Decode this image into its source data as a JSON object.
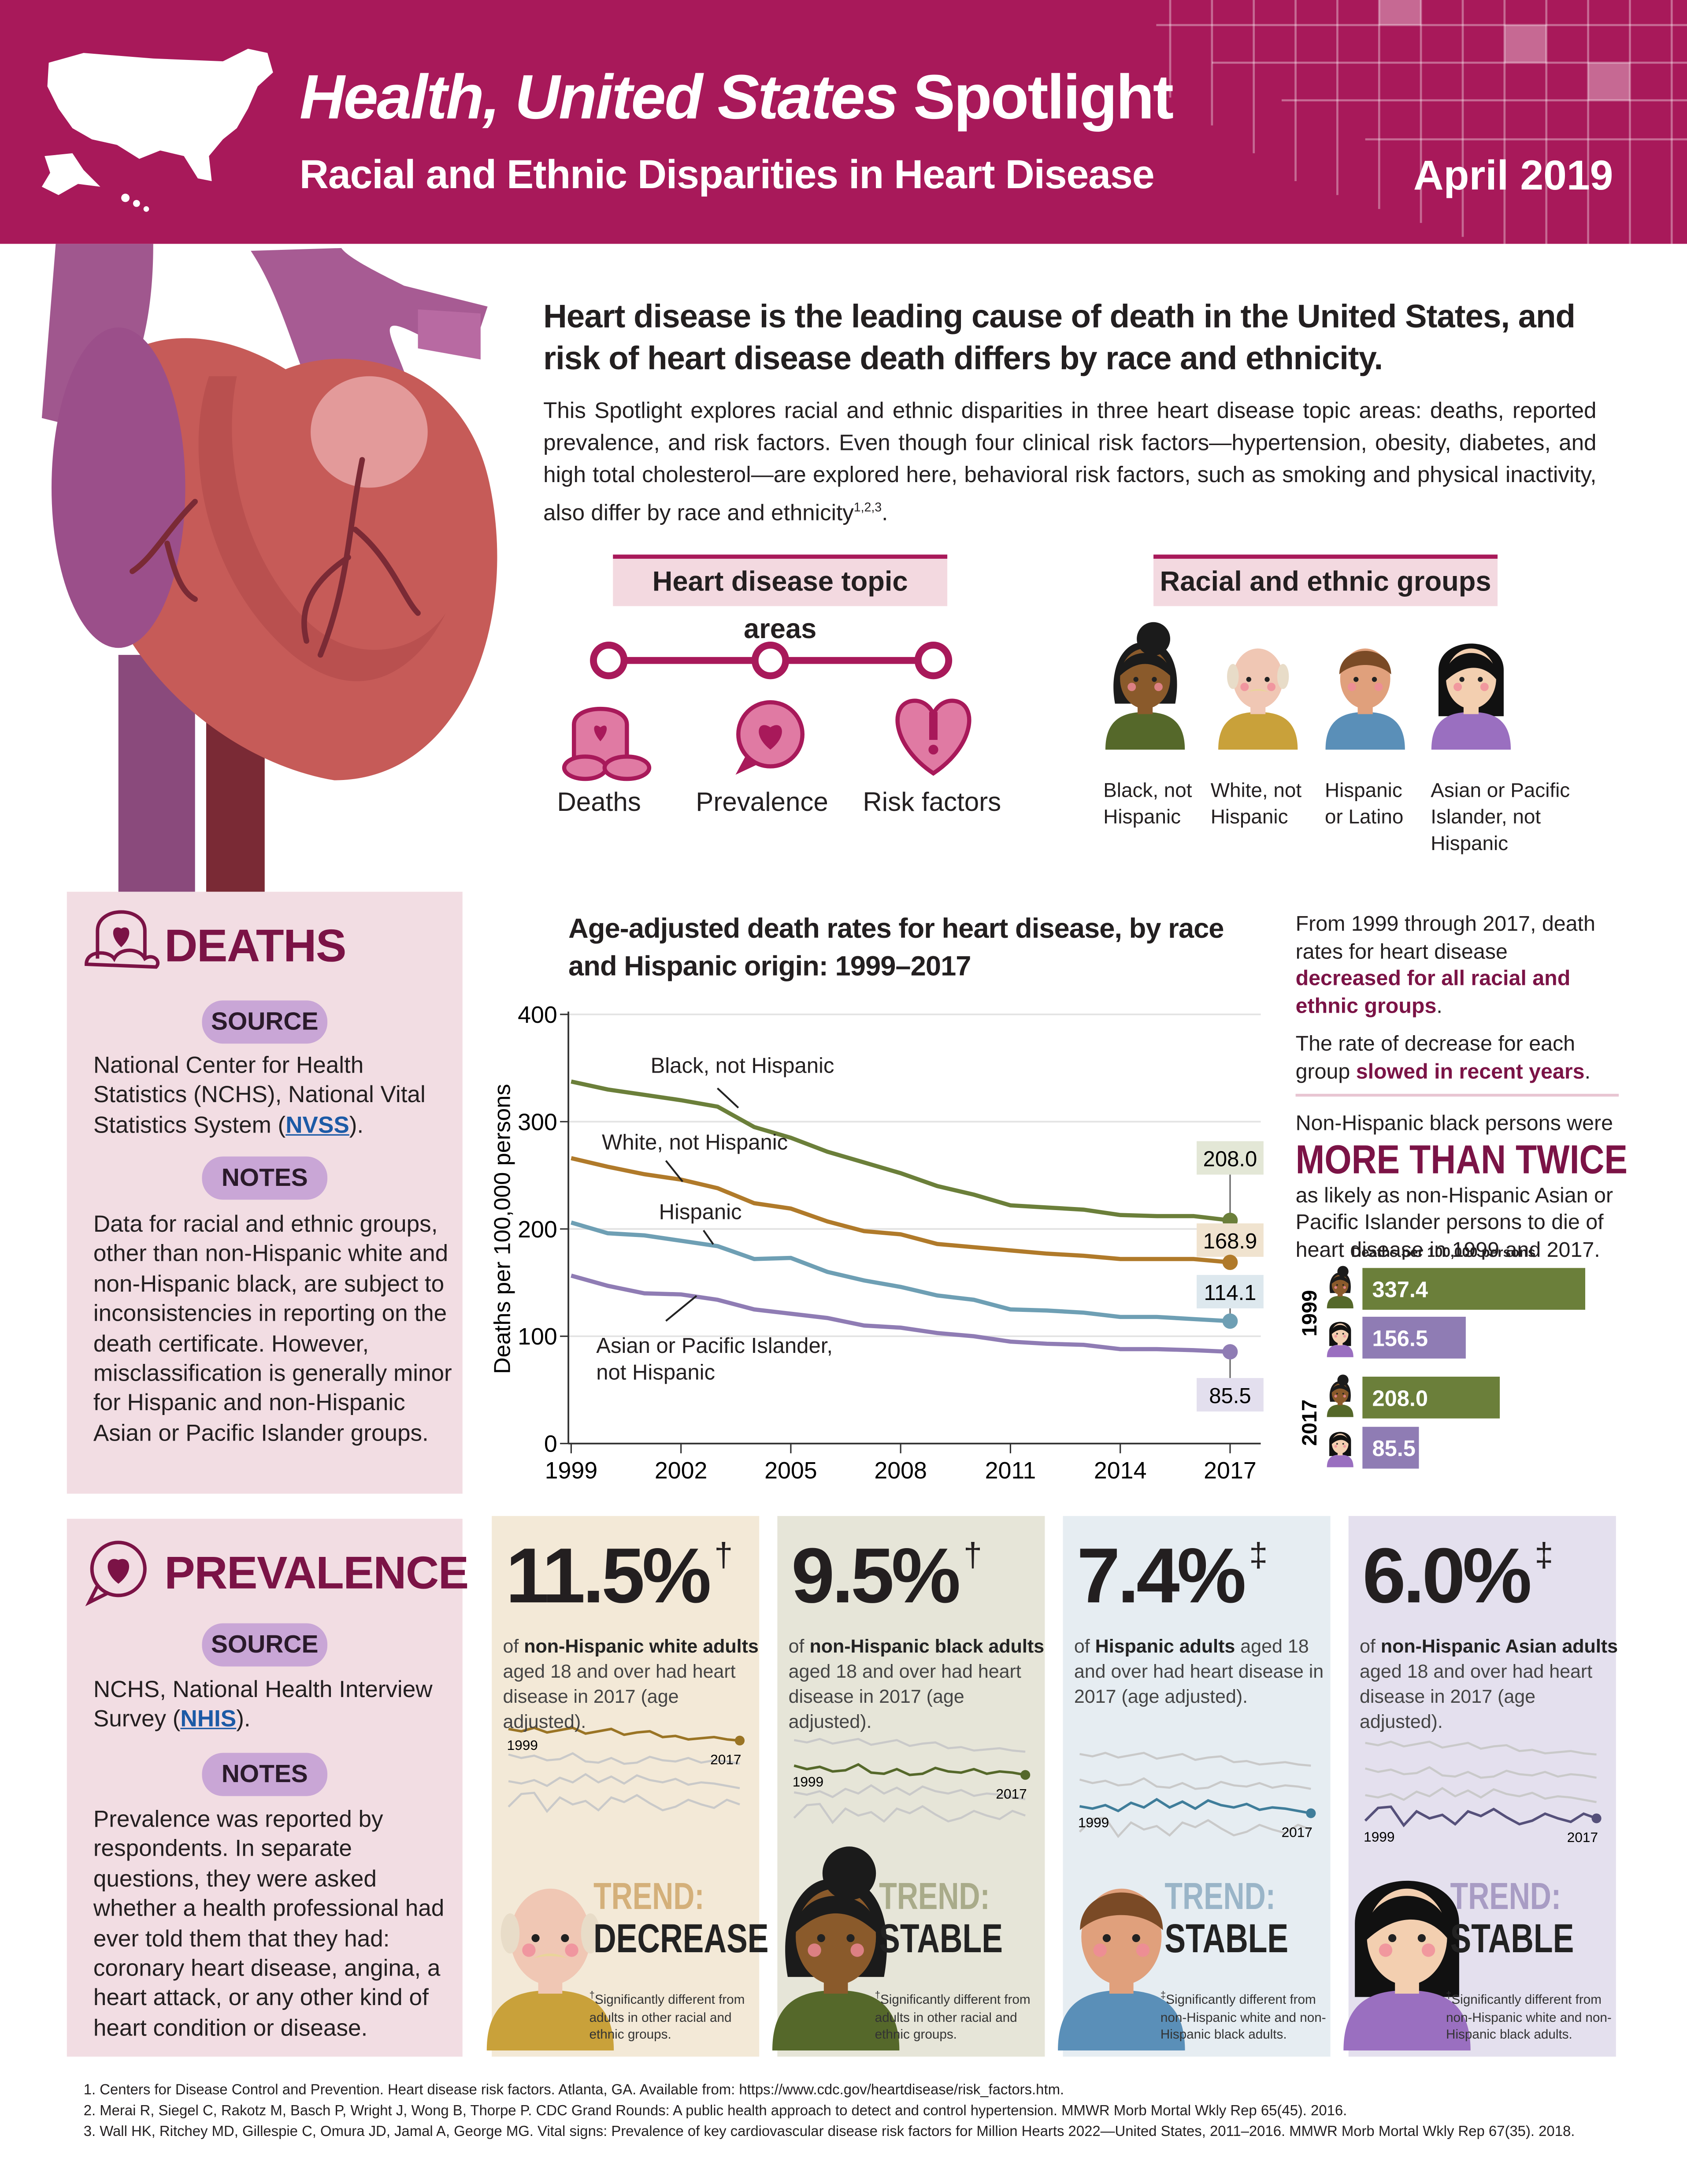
{
  "header": {
    "title_italic": "Health, United States",
    "title_rest": "Spotlight",
    "subtitle": "Racial and Ethnic Disparities in Heart Disease",
    "date": "April 2019"
  },
  "intro": {
    "heading": "Heart disease is the leading cause of death in the United States, and risk of heart disease death differs by race and ethnicity.",
    "body": "This Spotlight explores racial and ethnic disparities in three heart disease topic areas: deaths, reported prevalence, and risk factors. Even though four clinical risk factors—hypertension, obesity, diabetes, and high total cholesterol—are explored here, behavioral risk factors, such as smoking and physical inactivity, also differ by race and ethnicity",
    "citations": "1,2,3",
    "end": "."
  },
  "topics": {
    "title": "Heart disease topic areas",
    "items": [
      "Deaths",
      "Prevalence",
      "Risk factors"
    ]
  },
  "groups": {
    "title": "Racial and ethnic groups",
    "items": [
      "Black, not Hispanic",
      "White, not Hispanic",
      "Hispanic or Latino",
      "Asian or Pacific Islander, not Hispanic"
    ]
  },
  "deaths": {
    "title": "DEATHS",
    "source_label": "SOURCE",
    "source_before": "National Center for Health Statistics (NCHS), National Vital Statistics System (",
    "source_link": "NVSS",
    "source_after": ").",
    "notes_label": "NOTES",
    "notes": "Data for racial and ethnic groups, other than non-Hispanic white and non-Hispanic black, are subject to inconsistencies in reporting on the death certificate. However, misclassification is generally minor for Hispanic and non-Hispanic Asian or Pacific Islander groups."
  },
  "deaths_summary": {
    "p1_before": "From 1999 through 2017, death rates for heart disease ",
    "p1_bold": "decreased for all racial and ethnic groups",
    "p1_after": ".",
    "p2_before": "The rate of decrease for each group ",
    "p2_bold": "slowed in recent years",
    "p2_after": ".",
    "p3": "Non-Hispanic black persons were",
    "emphasis": "MORE THAN TWICE",
    "p4": "as likely as non-Hispanic Asian or Pacific Islander persons to die of heart disease in 1999 and 2017."
  },
  "chart_data": [
    {
      "type": "line",
      "title": "Age-adjusted death rates for heart disease, by race and Hispanic origin: 1999–2017",
      "y_label": "Deaths per 100,000 persons",
      "x": [
        1999,
        2000,
        2001,
        2002,
        2003,
        2004,
        2005,
        2006,
        2007,
        2008,
        2009,
        2010,
        2011,
        2012,
        2013,
        2014,
        2015,
        2016,
        2017
      ],
      "xlim": [
        1999,
        2017
      ],
      "xticks": [
        1999,
        2002,
        2005,
        2008,
        2011,
        2014,
        2017
      ],
      "ylim": [
        0,
        400
      ],
      "yticks": [
        0,
        100,
        200,
        300,
        400
      ],
      "grid": true,
      "series": [
        {
          "name": "Black, not Hispanic",
          "color": "#6b7f3a",
          "values": [
            337.4,
            330,
            325,
            320,
            314,
            295,
            285,
            272,
            262,
            252,
            240,
            232,
            222,
            220,
            218,
            213,
            212,
            212,
            208.0
          ],
          "value_labels": [
            null,
            null,
            null,
            null,
            null,
            null,
            null,
            null,
            null,
            null,
            null,
            null,
            null,
            null,
            null,
            null,
            null,
            null,
            "208.0"
          ]
        },
        {
          "name": "White, not Hispanic",
          "color": "#b07a2a",
          "values": [
            266,
            258,
            251,
            246,
            238,
            224,
            219,
            207,
            198,
            195,
            186,
            183,
            180,
            177,
            175,
            172,
            172,
            172,
            168.9
          ]
        },
        {
          "name": "Hispanic",
          "color": "#6e9fb4",
          "values": [
            206,
            196,
            194,
            189,
            184,
            172,
            173,
            160,
            152,
            146,
            138,
            134,
            125,
            124,
            122,
            118,
            118,
            116,
            114.1
          ]
        },
        {
          "name": "Asian or Pacific Islander, not Hispanic",
          "color": "#8f7cb4",
          "values": [
            156.5,
            147,
            140,
            139,
            134,
            125,
            121,
            117,
            110,
            108,
            103,
            100,
            95,
            93,
            92,
            88,
            88,
            87,
            85.5
          ]
        }
      ]
    },
    {
      "type": "bar",
      "orientation": "horizontal",
      "title": "Deaths per 100,000 persons",
      "categories": [
        "1999",
        "2017"
      ],
      "series": [
        {
          "color": "#6b7f3a",
          "values": [
            337.4,
            208.0
          ],
          "value_labels": [
            "337.4",
            "208.0"
          ]
        },
        {
          "color": "#8f7cb4",
          "values": [
            156.5,
            85.5
          ]
        }
      ]
    },
    {
      "type": "line",
      "x": [
        1999,
        2000,
        2001,
        2002,
        2003,
        2004,
        2005,
        2006,
        2007,
        2008,
        2009,
        2010,
        2011,
        2012,
        2013,
        2014,
        2015,
        2016,
        2017
      ],
      "series": [
        {
          "color": "#9a7424",
          "values": [
            12.5,
            12.3,
            12.6,
            12.2,
            12.4,
            12.6,
            12.1,
            12.3,
            12.5,
            12.0,
            12.2,
            12.3,
            11.8,
            11.9,
            11.6,
            11.7,
            11.8,
            11.6,
            11.5
          ]
        },
        {
          "color": "#55682a",
          "values": [
            10.3,
            10.0,
            10.2,
            9.8,
            9.9,
            10.4,
            9.7,
            9.6,
            10.0,
            9.5,
            9.6,
            10.1,
            9.8,
            9.7,
            10.0,
            9.6,
            9.8,
            9.7,
            9.5
          ]
        },
        {
          "color": "#3f7d9a",
          "values": [
            8.0,
            7.8,
            8.1,
            7.6,
            8.3,
            7.9,
            8.6,
            7.9,
            8.4,
            7.8,
            8.5,
            8.1,
            7.9,
            8.2,
            7.7,
            7.9,
            7.8,
            7.6,
            7.4
          ]
        },
        {
          "color": "#55507a",
          "values": [
            5.8,
            6.9,
            7.0,
            5.4,
            6.6,
            6.0,
            6.3,
            5.5,
            6.6,
            6.2,
            6.8,
            6.1,
            5.5,
            5.8,
            6.4,
            6.0,
            5.7,
            6.4,
            6.0
          ]
        }
      ]
    }
  ],
  "prevalence": {
    "title": "PREVALENCE",
    "source_label": "SOURCE",
    "source_before": "NCHS, National Health Interview Survey (",
    "source_link": "NHIS",
    "source_after": ").",
    "notes_label": "NOTES",
    "notes": "Prevalence was reported by respondents. In separate questions, they were asked whether a health professional had ever told them that they had: coronary heart disease, angina, a heart attack, or any other kind of heart condition or disease.",
    "panels": [
      {
        "stat": "11.5%",
        "mark": "†",
        "lead": "of",
        "group": "non-Hispanic white adults",
        "rest": "aged 18 and over had heart disease in 2017 (age adjusted).",
        "trend_label": "TREND:",
        "trend": "DECREASE",
        "footnote": "Significantly different from adults in other racial and ethnic groups."
      },
      {
        "stat": "9.5%",
        "mark": "†",
        "lead": "of",
        "group": "non-Hispanic black adults",
        "rest": "aged 18 and over had heart disease in 2017 (age adjusted).",
        "trend_label": "TREND:",
        "trend": "STABLE",
        "footnote": "Significantly different from adults in other racial and ethnic groups."
      },
      {
        "stat": "7.4%",
        "mark": "‡",
        "lead": "of",
        "group": "Hispanic adults",
        "rest": "aged 18 and over had heart disease in 2017 (age adjusted).",
        "trend_label": "TREND:",
        "trend": "STABLE",
        "footnote": "Significantly different from non-Hispanic white and non-Hispanic black adults."
      },
      {
        "stat": "6.0%",
        "mark": "‡",
        "lead": "of",
        "group": "non-Hispanic Asian adults",
        "rest": "aged 18 and over had heart disease in 2017 (age adjusted).",
        "trend_label": "TREND:",
        "trend": "STABLE",
        "footnote": "Significantly different from non-Hispanic white and non-Hispanic black adults."
      }
    ]
  },
  "references": [
    "1. Centers for Disease Control and Prevention. Heart disease risk factors. Atlanta, GA. Available from: https://www.cdc.gov/heartdisease/risk_factors.htm.",
    "2. Merai R, Siegel C, Rakotz M, Basch P, Wright J, Wong B, Thorpe P. CDC Grand Rounds: A public health approach to detect and control hypertension. MMWR Morb Mortal Wkly Rep 65(45). 2016.",
    "3. Wall HK, Ritchey MD, Gillespie C, Omura JD, Jamal A, George MG. Vital signs: Prevalence of key cardiovascular disease risk factors for Million Hearts 2022—United States, 2011–2016. MMWR Morb Mortal Wkly Rep 67(35). 2018."
  ]
}
